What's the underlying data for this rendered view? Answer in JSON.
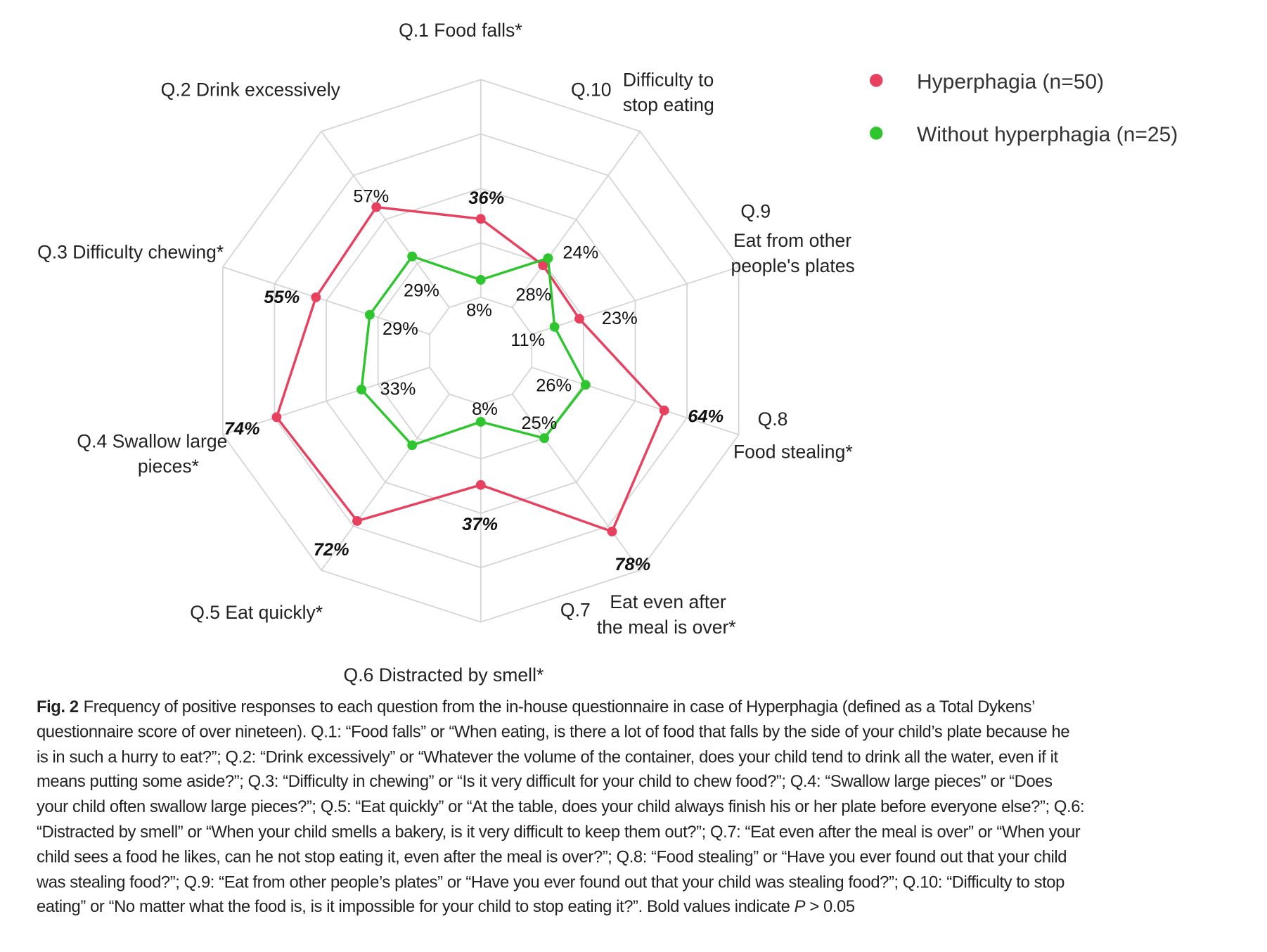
{
  "chart_data": {
    "type": "radar",
    "axes": [
      {
        "id": "Q.1",
        "label": [
          "Q.1 Food falls*"
        ]
      },
      {
        "id": "Q.2",
        "label": [
          "Q.2  Drink excessively"
        ]
      },
      {
        "id": "Q.3",
        "label": [
          "Q.3  Difficulty chewing*"
        ]
      },
      {
        "id": "Q.4",
        "label": [
          "Q.4  Swallow large",
          "pieces*"
        ]
      },
      {
        "id": "Q.5",
        "label": [
          "Q.5 Eat quickly*"
        ]
      },
      {
        "id": "Q.6",
        "label": [
          "Q.6  Distracted by smell*"
        ]
      },
      {
        "id": "Q.7",
        "label": [
          "Q.7",
          "Eat even after",
          "the meal is over*"
        ]
      },
      {
        "id": "Q.8",
        "label": [
          "Q.8",
          "Food stealing*"
        ]
      },
      {
        "id": "Q.9",
        "label": [
          "Q.9",
          "Eat from other",
          "people's plates"
        ]
      },
      {
        "id": "Q.10",
        "label": [
          "Q.10",
          "Difficulty to",
          "stop eating"
        ]
      }
    ],
    "range": [
      0,
      100
    ],
    "grid_rings": [
      0,
      25,
      50,
      75,
      100
    ],
    "legend_placement": "top-right",
    "series": [
      {
        "name": "Hyperphagia (n=50)",
        "color": "#e8405f",
        "values": [
          36,
          57,
          55,
          74,
          72,
          37,
          78,
          64,
          23,
          24
        ],
        "labels": [
          "36%",
          "57%",
          "55%",
          "74%",
          "72%",
          "37%",
          "78%",
          "64%",
          "23%",
          "24%"
        ],
        "bold": [
          true,
          false,
          true,
          true,
          true,
          true,
          true,
          true,
          false,
          false
        ]
      },
      {
        "name": "Without hyperphagia (n=25)",
        "color": "#2ec52e",
        "values": [
          8,
          29,
          29,
          33,
          29,
          8,
          25,
          26,
          11,
          28
        ],
        "labels": [
          "8%",
          "29%",
          "29%",
          "33%",
          null,
          "8%",
          "25%",
          "26%",
          "11%",
          "28%"
        ],
        "bold": [
          false,
          false,
          false,
          false,
          false,
          false,
          false,
          false,
          false,
          false
        ]
      }
    ],
    "grid_color": "#d4d4d4"
  },
  "caption": {
    "fig_label": "Fig. 2",
    "lines": [
      "Frequency of positive responses to each question from the in-house questionnaire in case of Hyperphagia (defined as a Total Dykens’",
      "questionnaire score of over nineteen). Q.1: “Food falls” or “When eating, is there a lot of food that falls by the side of your child’s plate because he",
      "is in such a hurry to eat?”; Q.2: “Drink excessively” or “Whatever the volume of the container, does your child tend to drink all the water, even if it",
      "means putting some aside?”; Q.3: “Difficulty in chewing” or “Is it very difficult for your child to chew food?”; Q.4: “Swallow large pieces” or “Does",
      "your child often swallow large pieces?”; Q.5: “Eat quickly” or “At the table, does your child always finish his or her plate before everyone else?”; Q.6:",
      "“Distracted by smell” or “When your child smells a bakery, is it very difficult to keep them out?”; Q.7: “Eat even after the meal is over” or “When your",
      "child sees a food he likes, can he not stop eating it, even after the meal is over?”; Q.8: “Food stealing” or “Have you ever found out that your child",
      "was stealing food?”; Q.9: “Eat from other people’s plates” or “Have you ever found out that your child was stealing food?”; Q.10: “Difficulty to stop"
    ],
    "last_line_pre": "eating” or “No matter what the food is, is it impossible for your child to stop eating it?”. Bold values indicate ",
    "last_line_italic": "P",
    "last_line_post": " > 0.05"
  }
}
